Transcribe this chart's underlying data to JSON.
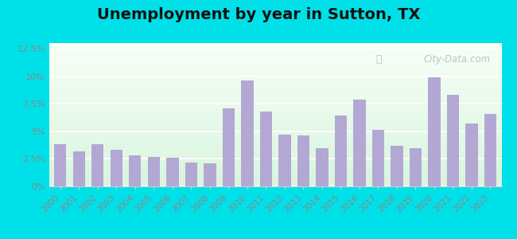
{
  "title": "Unemployment by year in Sutton, TX",
  "years": [
    2000,
    2001,
    2002,
    2003,
    2004,
    2005,
    2006,
    2007,
    2008,
    2009,
    2010,
    2011,
    2012,
    2013,
    2014,
    2015,
    2016,
    2017,
    2018,
    2019,
    2020,
    2021,
    2022,
    2023
  ],
  "values": [
    3.8,
    3.2,
    3.8,
    3.3,
    2.8,
    2.7,
    2.6,
    2.2,
    2.1,
    7.1,
    9.6,
    6.8,
    4.7,
    4.6,
    3.5,
    6.4,
    7.9,
    5.1,
    3.7,
    3.5,
    9.9,
    8.3,
    5.7,
    6.6
  ],
  "bar_color": "#b3a8d4",
  "outer_background": "#00e0e8",
  "plot_bg_color": "#e8f5e8",
  "ylim": [
    0,
    13
  ],
  "yticks": [
    0,
    2.5,
    5.0,
    7.5,
    10.0,
    12.5
  ],
  "ytick_labels": [
    "0%",
    "2.5%",
    "5%",
    "7.5%",
    "10%",
    "12.5%"
  ],
  "title_fontsize": 14,
  "watermark_text": "City-Data.com",
  "grid_color": "#ffffff",
  "spine_color": "#cccccc",
  "tick_color": "#888888",
  "label_fontsize": 8
}
